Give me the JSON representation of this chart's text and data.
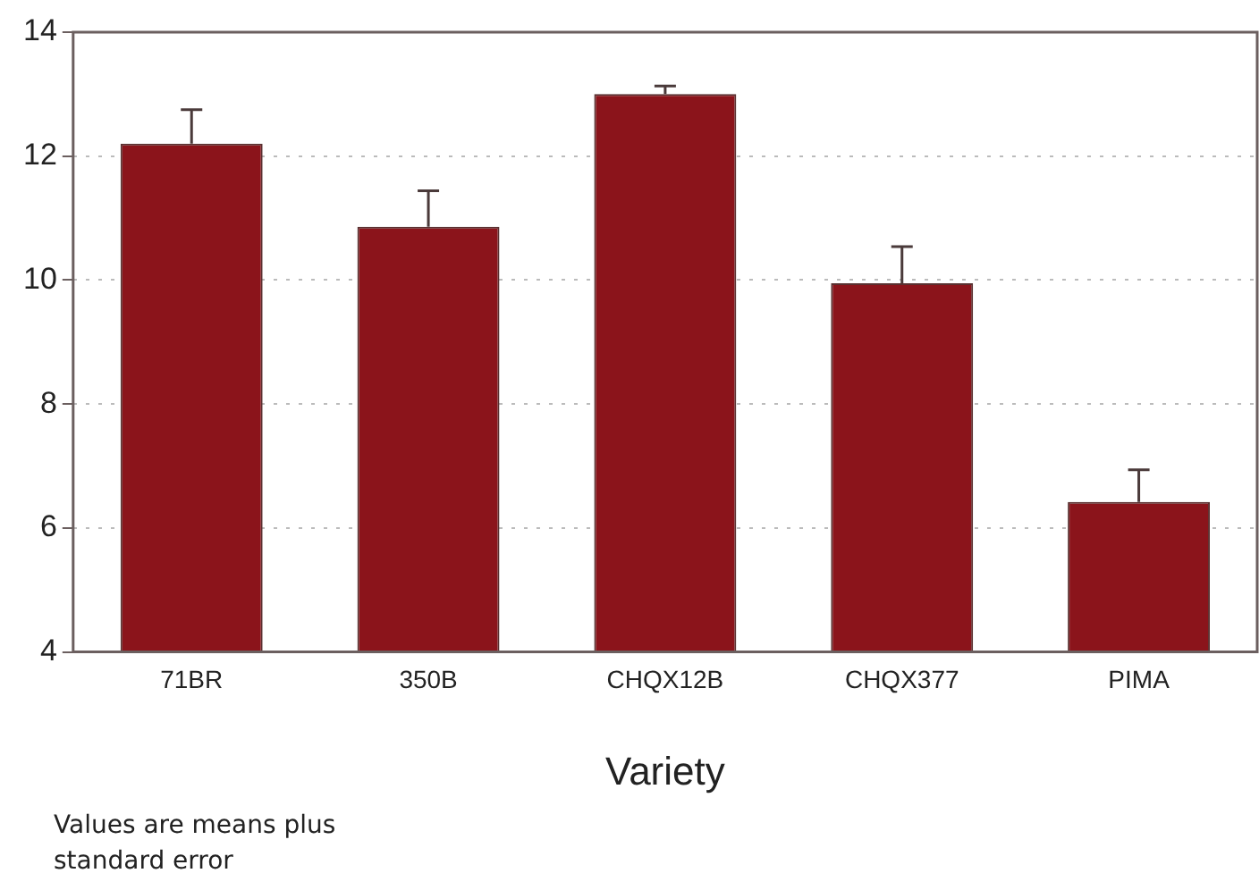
{
  "chart_data": {
    "type": "bar",
    "xlabel": "Variety",
    "annotations": [
      "Values are means plus standard error"
    ],
    "categories": [
      "71BR",
      "350B",
      "CHQX12B",
      "CHQX377",
      "PIMA"
    ],
    "values": [
      12.2,
      10.86,
      13.0,
      9.95,
      6.42
    ],
    "errors": [
      [
        12.2,
        12.75
      ],
      [
        10.86,
        11.44
      ],
      [
        13.0,
        13.13
      ],
      [
        9.95,
        10.54
      ],
      [
        6.42,
        6.94
      ]
    ],
    "color": "#8b141b",
    "ylim": [
      4,
      14
    ],
    "yticks": [
      4,
      6,
      8,
      10,
      12,
      14
    ],
    "grid": "y",
    "legend": false
  }
}
